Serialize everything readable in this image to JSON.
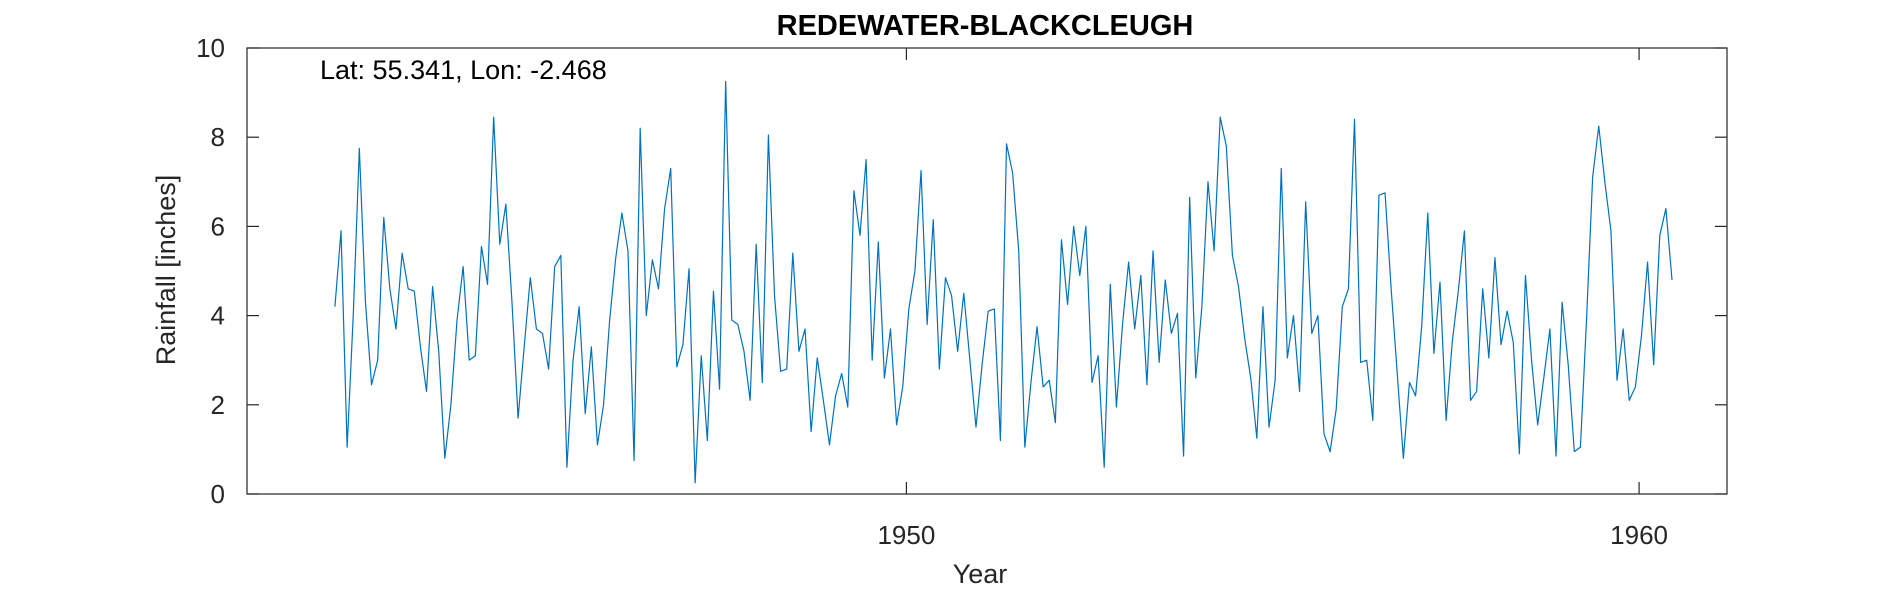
{
  "chart_data": {
    "type": "line",
    "title": "REDEWATER-BLACKCLEUGH",
    "xlabel": "Year",
    "ylabel": "Rainfall [inches]",
    "annotation": "Lat: 55.341, Lon: -2.468",
    "xlim": [
      1941.0,
      1961.2
    ],
    "ylim": [
      0,
      10
    ],
    "xticks": [
      1950,
      1960
    ],
    "xtick_labels": [
      "1950",
      "1960"
    ],
    "yticks": [
      0,
      2,
      4,
      6,
      8,
      10
    ],
    "ytick_labels": [
      "0",
      "2",
      "4",
      "6",
      "8",
      "10"
    ],
    "grid": false,
    "line_color": "#0072BD",
    "series": [
      {
        "x_start_year": 1942.2,
        "x_step_years": 0.08333,
        "values": [
          4.2,
          5.9,
          1.05,
          4.0,
          7.75,
          4.3,
          2.45,
          3.0,
          6.2,
          4.6,
          3.7,
          5.4,
          4.6,
          4.55,
          3.3,
          2.3,
          4.65,
          3.2,
          0.8,
          2.0,
          3.9,
          5.1,
          3.0,
          3.1,
          5.55,
          4.7,
          8.45,
          5.6,
          6.5,
          4.3,
          1.7,
          3.3,
          4.85,
          3.7,
          3.6,
          2.8,
          5.1,
          5.35,
          0.6,
          3.0,
          4.2,
          1.8,
          3.3,
          1.1,
          2.0,
          3.9,
          5.3,
          6.3,
          5.45,
          0.75,
          8.2,
          4.0,
          5.25,
          4.6,
          6.4,
          7.3,
          2.85,
          3.35,
          5.05,
          0.25,
          3.1,
          1.2,
          4.55,
          2.35,
          9.25,
          3.9,
          3.8,
          3.2,
          2.1,
          5.6,
          2.5,
          8.05,
          4.45,
          2.75,
          2.8,
          5.4,
          3.2,
          3.7,
          1.4,
          3.05,
          2.1,
          1.1,
          2.2,
          2.7,
          1.95,
          6.8,
          5.8,
          7.5,
          3.0,
          5.65,
          2.6,
          3.7,
          1.55,
          2.4,
          4.15,
          5.0,
          7.25,
          3.8,
          6.15,
          2.8,
          4.85,
          4.45,
          3.2,
          4.5,
          3.0,
          1.5,
          2.9,
          4.1,
          4.15,
          1.2,
          7.85,
          7.2,
          5.45,
          1.05,
          2.5,
          3.75,
          2.4,
          2.55,
          1.6,
          5.7,
          4.25,
          6.0,
          4.9,
          6.0,
          2.5,
          3.1,
          0.6,
          4.7,
          1.95,
          3.8,
          5.2,
          3.7,
          4.9,
          2.45,
          5.45,
          2.95,
          4.8,
          3.6,
          4.05,
          0.85,
          6.65,
          2.6,
          4.2,
          7.0,
          5.45,
          8.45,
          7.8,
          5.35,
          4.65,
          3.5,
          2.6,
          1.25,
          4.2,
          1.5,
          2.55,
          7.3,
          3.05,
          4.0,
          2.3,
          6.55,
          3.6,
          4.0,
          1.35,
          0.95,
          1.9,
          4.2,
          4.6,
          8.4,
          2.95,
          3.0,
          1.65,
          6.7,
          6.75,
          4.6,
          2.7,
          0.8,
          2.5,
          2.2,
          3.75,
          6.3,
          3.15,
          4.75,
          1.65,
          3.4,
          4.55,
          5.9,
          2.1,
          2.3,
          4.6,
          3.05,
          5.3,
          3.35,
          4.1,
          3.4,
          0.9,
          4.9,
          3.0,
          1.55,
          2.6,
          3.7,
          0.85,
          4.3,
          2.9,
          0.95,
          1.05,
          3.9,
          7.1,
          8.25,
          7.0,
          5.9,
          2.55,
          3.7,
          2.1,
          2.4,
          3.55,
          5.2,
          2.9,
          5.8,
          6.4,
          4.8
        ]
      }
    ]
  }
}
